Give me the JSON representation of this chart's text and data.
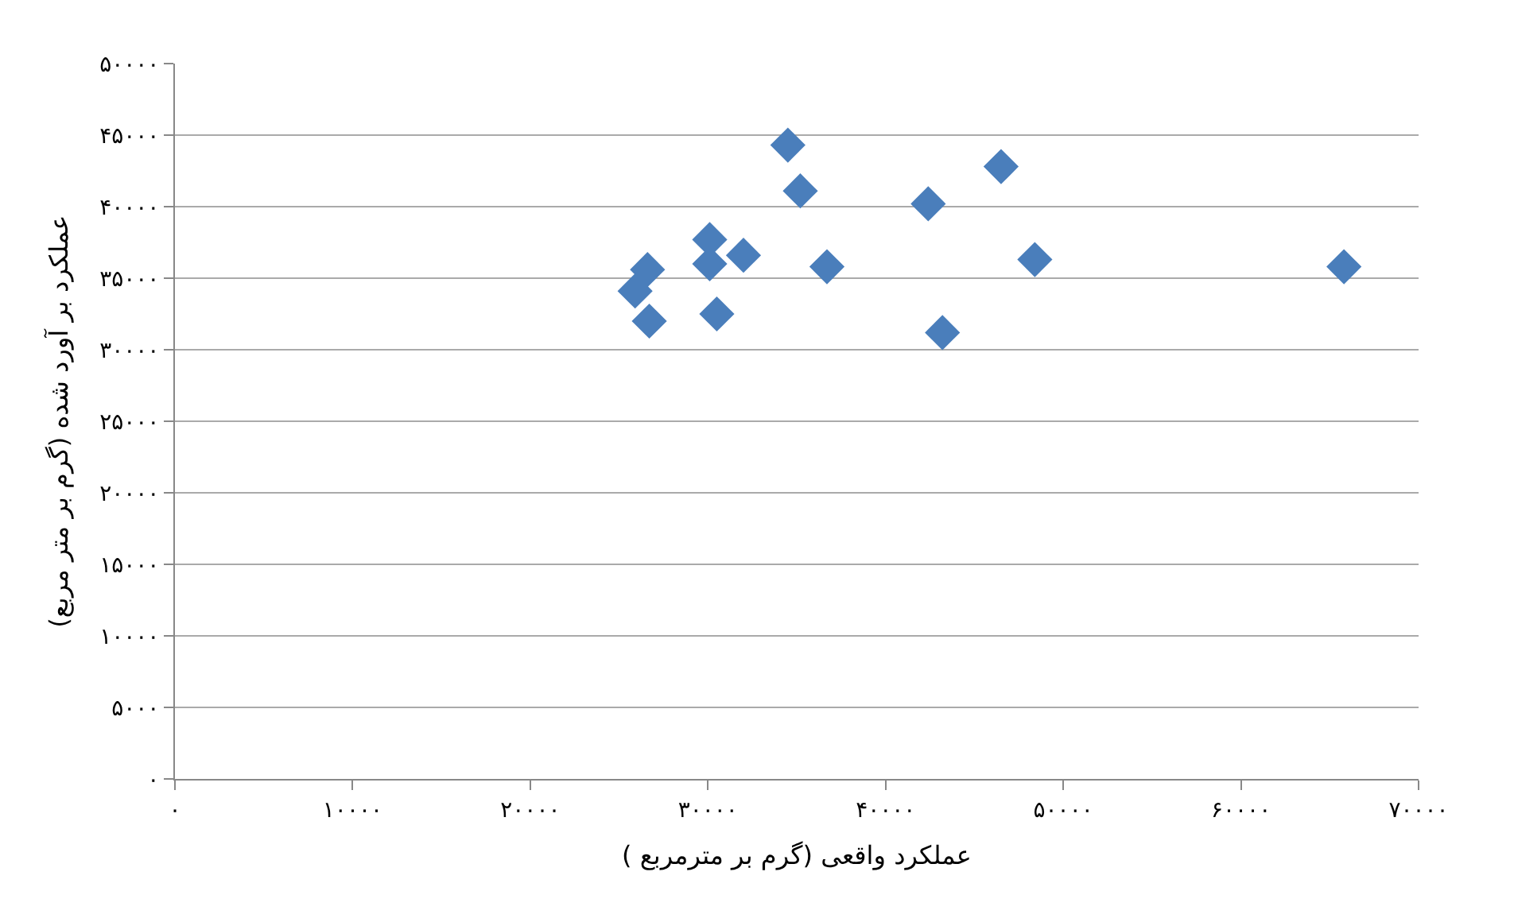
{
  "chart_data": {
    "type": "scatter",
    "xlabel": "عملکرد واقعی (گرم بر مترمربع )",
    "ylabel": "عملکرد بر آورد شده (گرم بر متر مربع)",
    "x": [
      26600,
      25900,
      26700,
      30100,
      30100,
      32000,
      30500,
      34500,
      35200,
      36700,
      42400,
      43200,
      46500,
      48400,
      65800
    ],
    "series": [
      {
        "color": "#4a7ebb",
        "values": [
          35600,
          34100,
          32000,
          37700,
          36000,
          36600,
          32500,
          44300,
          41100,
          35800,
          40200,
          31200,
          42800,
          36300,
          35800
        ]
      }
    ],
    "xlim": [
      0,
      70000
    ],
    "xticks": [
      {
        "value": 0,
        "label": "۰"
      },
      {
        "value": 10000,
        "label": "۱۰۰۰۰"
      },
      {
        "value": 20000,
        "label": "۲۰۰۰۰"
      },
      {
        "value": 30000,
        "label": "۳۰۰۰۰"
      },
      {
        "value": 40000,
        "label": "۴۰۰۰۰"
      },
      {
        "value": 50000,
        "label": "۵۰۰۰۰"
      },
      {
        "value": 60000,
        "label": "۶۰۰۰۰"
      },
      {
        "value": 70000,
        "label": "۷۰۰۰۰"
      }
    ],
    "ylim": [
      0,
      50000
    ],
    "yticks": [
      {
        "value": 0,
        "label": "۰"
      },
      {
        "value": 5000,
        "label": "۵۰۰۰"
      },
      {
        "value": 10000,
        "label": "۱۰۰۰۰"
      },
      {
        "value": 15000,
        "label": "۱۵۰۰۰"
      },
      {
        "value": 20000,
        "label": "۲۰۰۰۰"
      },
      {
        "value": 25000,
        "label": "۲۵۰۰۰"
      },
      {
        "value": 30000,
        "label": "۳۰۰۰۰"
      },
      {
        "value": 35000,
        "label": "۳۵۰۰۰"
      },
      {
        "value": 40000,
        "label": "۴۰۰۰۰"
      },
      {
        "value": 45000,
        "label": "۴۵۰۰۰"
      },
      {
        "value": 50000,
        "label": "۵۰۰۰۰"
      }
    ],
    "grid": "y",
    "marker": "diamond"
  }
}
